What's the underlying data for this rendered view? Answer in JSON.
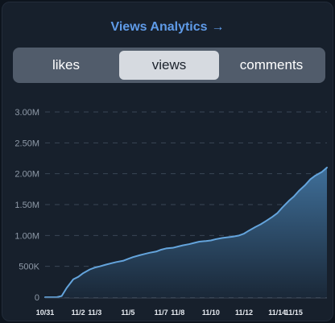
{
  "header": {
    "title": "Views Analytics",
    "arrow": "→"
  },
  "tabs": [
    {
      "label": "likes",
      "active": false
    },
    {
      "label": "views",
      "active": true
    },
    {
      "label": "comments",
      "active": false
    }
  ],
  "colors": {
    "accent_link": "#5f9be8",
    "line": "#64a4dc",
    "area_top": "#3f6f99",
    "area_bottom": "#1a2838"
  },
  "chart_data": {
    "type": "area",
    "title": "",
    "xlabel": "",
    "ylabel": "",
    "ylim": [
      0,
      3000000
    ],
    "yticks": [
      0,
      500000,
      1000000,
      1500000,
      2000000,
      2500000,
      3000000
    ],
    "ytick_labels": [
      "0",
      "500K",
      "1.00M",
      "1.50M",
      "2.00M",
      "2.50M",
      "3.00M"
    ],
    "grid": true,
    "x_ticks": [
      {
        "label": "10/31",
        "day": 0
      },
      {
        "label": "11/2",
        "day": 2
      },
      {
        "label": "11/3",
        "day": 3
      },
      {
        "label": "11/5",
        "day": 5
      },
      {
        "label": "11/7",
        "day": 7
      },
      {
        "label": "11/8",
        "day": 8
      },
      {
        "label": "11/10",
        "day": 10
      },
      {
        "label": "11/12",
        "day": 12
      },
      {
        "label": "11/14",
        "day": 14
      },
      {
        "label": "11/15",
        "day": 15
      }
    ],
    "x": [
      0,
      0.7,
      1.0,
      1.3,
      1.7,
      2.0,
      2.3,
      2.7,
      3.0,
      3.3,
      3.7,
      4.0,
      4.3,
      4.7,
      5.0,
      5.3,
      5.7,
      6.0,
      6.3,
      6.7,
      7.0,
      7.3,
      7.7,
      8.0,
      8.3,
      8.7,
      9.0,
      9.3,
      9.7,
      10.0,
      10.3,
      10.7,
      11.0,
      11.3,
      11.7,
      12.0,
      12.3,
      12.7,
      13.0,
      13.3,
      13.7,
      14.0,
      14.3,
      14.7,
      15.0,
      15.3,
      15.7,
      16.0,
      16.3,
      16.7,
      17.0
    ],
    "values": [
      0,
      0,
      20000,
      150000,
      290000,
      330000,
      390000,
      450000,
      480000,
      500000,
      530000,
      550000,
      570000,
      590000,
      620000,
      650000,
      680000,
      700000,
      720000,
      740000,
      770000,
      790000,
      800000,
      820000,
      840000,
      860000,
      880000,
      900000,
      910000,
      920000,
      940000,
      960000,
      970000,
      980000,
      1000000,
      1030000,
      1080000,
      1140000,
      1180000,
      1230000,
      1300000,
      1360000,
      1450000,
      1560000,
      1630000,
      1720000,
      1820000,
      1910000,
      1970000,
      2030000,
      2100000
    ]
  }
}
